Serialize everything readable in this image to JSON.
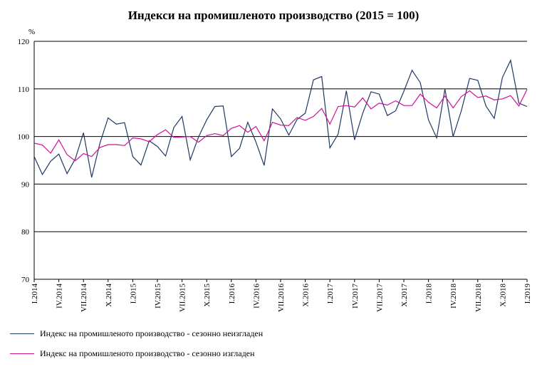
{
  "chart_data": {
    "type": "line",
    "title": "Индекси на промишленото производство (2015 = 100)",
    "ylabel": "%",
    "ylim": [
      70,
      120
    ],
    "yticks": [
      70,
      80,
      90,
      100,
      110,
      120
    ],
    "grid": true,
    "x_tick_labels": [
      "I.2014",
      "IV.2014",
      "VII.2014",
      "X.2014",
      "I.2015",
      "IV.2015",
      "VII.2015",
      "X.2015",
      "I.2016",
      "IV.2016",
      "VII.2016",
      "X.2016",
      "I.2017",
      "IV.2017",
      "VII.2017",
      "X.2017",
      "I.2018",
      "IV.2018",
      "VII.2018",
      "X.2018",
      "I.2019"
    ],
    "series": [
      {
        "name": "Индекс на промишленото производство - сезонно неизгладен",
        "color": "#1f3864",
        "values": [
          95.8,
          92.0,
          94.8,
          96.3,
          92.2,
          95.3,
          100.8,
          91.4,
          98.6,
          103.9,
          102.6,
          102.9,
          95.8,
          94.0,
          99.1,
          97.9,
          95.9,
          101.9,
          104.2,
          95.1,
          99.9,
          103.5,
          106.3,
          106.4,
          95.8,
          97.5,
          103.0,
          98.8,
          93.9,
          105.8,
          103.7,
          100.3,
          103.6,
          104.9,
          111.9,
          112.6,
          97.6,
          100.5,
          109.6,
          99.3,
          104.9,
          109.4,
          108.9,
          104.4,
          105.4,
          109.5,
          113.9,
          111.3,
          103.5,
          99.7,
          110.0,
          100.0,
          105.4,
          112.2,
          111.8,
          106.4,
          103.8,
          112.4,
          116.0,
          107.0,
          106.3
        ]
      },
      {
        "name": "Индекс на промишленото производство - сезонно изгладен",
        "color": "#d0109a",
        "values": [
          98.6,
          98.2,
          96.5,
          99.3,
          96.2,
          94.9,
          96.4,
          95.8,
          97.7,
          98.3,
          98.3,
          98.1,
          99.7,
          99.5,
          98.9,
          100.4,
          101.4,
          99.8,
          99.9,
          100.0,
          98.8,
          100.2,
          100.6,
          100.2,
          101.7,
          102.3,
          100.9,
          102.1,
          99.1,
          103.0,
          102.4,
          102.3,
          104.0,
          103.4,
          104.2,
          105.9,
          102.6,
          106.3,
          106.5,
          106.2,
          108.1,
          105.8,
          107.0,
          106.6,
          107.5,
          106.5,
          106.5,
          108.9,
          107.2,
          106.0,
          108.5,
          106.0,
          108.4,
          109.6,
          108.2,
          108.5,
          107.7,
          107.9,
          108.6,
          106.4,
          109.9
        ]
      }
    ]
  }
}
